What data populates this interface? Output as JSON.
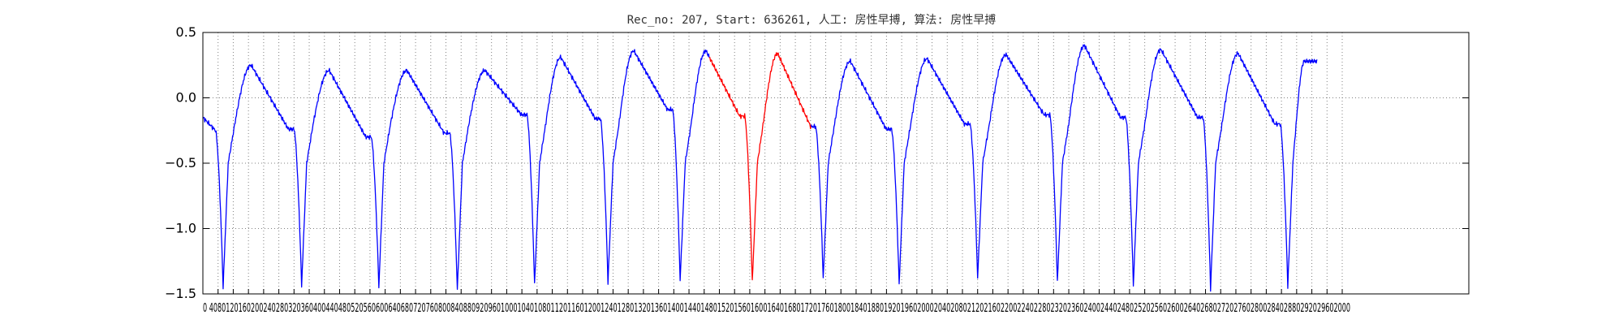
{
  "chart_data": {
    "type": "line",
    "title": "Rec_no: 207, Start: 636261, 人工: 房性早搏, 算法: 房性早搏",
    "xlabel": "",
    "ylabel": "",
    "xlim": [
      0,
      1000
    ],
    "ylim": [
      -1.5,
      0.5
    ],
    "grid": true,
    "yticks": [
      0.5,
      0.0,
      -0.5,
      -1.0,
      -1.5
    ],
    "ytick_labels": [
      "0.5",
      "0.0",
      "−0.5",
      "−1.0",
      "−1.5"
    ],
    "xtick_step": 12,
    "xtick_max": 900,
    "xtick_label_text": "0 4080120160200240280320360400440480520560600640680720760800840880920960100010401080112011601200124012801320136014001440148015201560160016401680172017601800184018801920196020002040208021202160220022402280232023602400244024802520256026002640268027202760280028402880292029602000",
    "series_end_x": 880,
    "beats": [
      {
        "x": 16,
        "r": -1.45,
        "peak": 0.25,
        "pre": -0.24
      },
      {
        "x": 78,
        "r": -1.44,
        "peak": 0.21,
        "pre": -0.3
      },
      {
        "x": 139,
        "r": -1.45,
        "peak": 0.21,
        "pre": -0.27
      },
      {
        "x": 201,
        "r": -1.47,
        "peak": 0.21,
        "pre": -0.13
      },
      {
        "x": 262,
        "r": -1.43,
        "peak": 0.31,
        "pre": -0.16
      },
      {
        "x": 320,
        "r": -1.41,
        "peak": 0.36,
        "pre": -0.09
      },
      {
        "x": 377,
        "r": -1.4,
        "peak": 0.36,
        "pre": -0.14
      },
      {
        "x": 434,
        "r": -1.41,
        "peak": 0.34,
        "pre": -0.22
      },
      {
        "x": 490,
        "r": -1.38,
        "peak": 0.28,
        "pre": -0.24
      },
      {
        "x": 550,
        "r": -1.43,
        "peak": 0.3,
        "pre": -0.2
      },
      {
        "x": 612,
        "r": -1.38,
        "peak": 0.33,
        "pre": -0.13
      },
      {
        "x": 675,
        "r": -1.41,
        "peak": 0.4,
        "pre": -0.15
      },
      {
        "x": 735,
        "r": -1.43,
        "peak": 0.37,
        "pre": -0.15
      },
      {
        "x": 796,
        "r": -1.46,
        "peak": 0.34,
        "pre": -0.2
      },
      {
        "x": 857,
        "r": -1.44,
        "peak": 0.28,
        "pre": 0
      }
    ],
    "highlight_range": [
      400,
      480
    ],
    "colors": {
      "normal": "#0000ff",
      "highlight": "#ff0000",
      "grid": "#808080",
      "axis": "#000000"
    }
  }
}
